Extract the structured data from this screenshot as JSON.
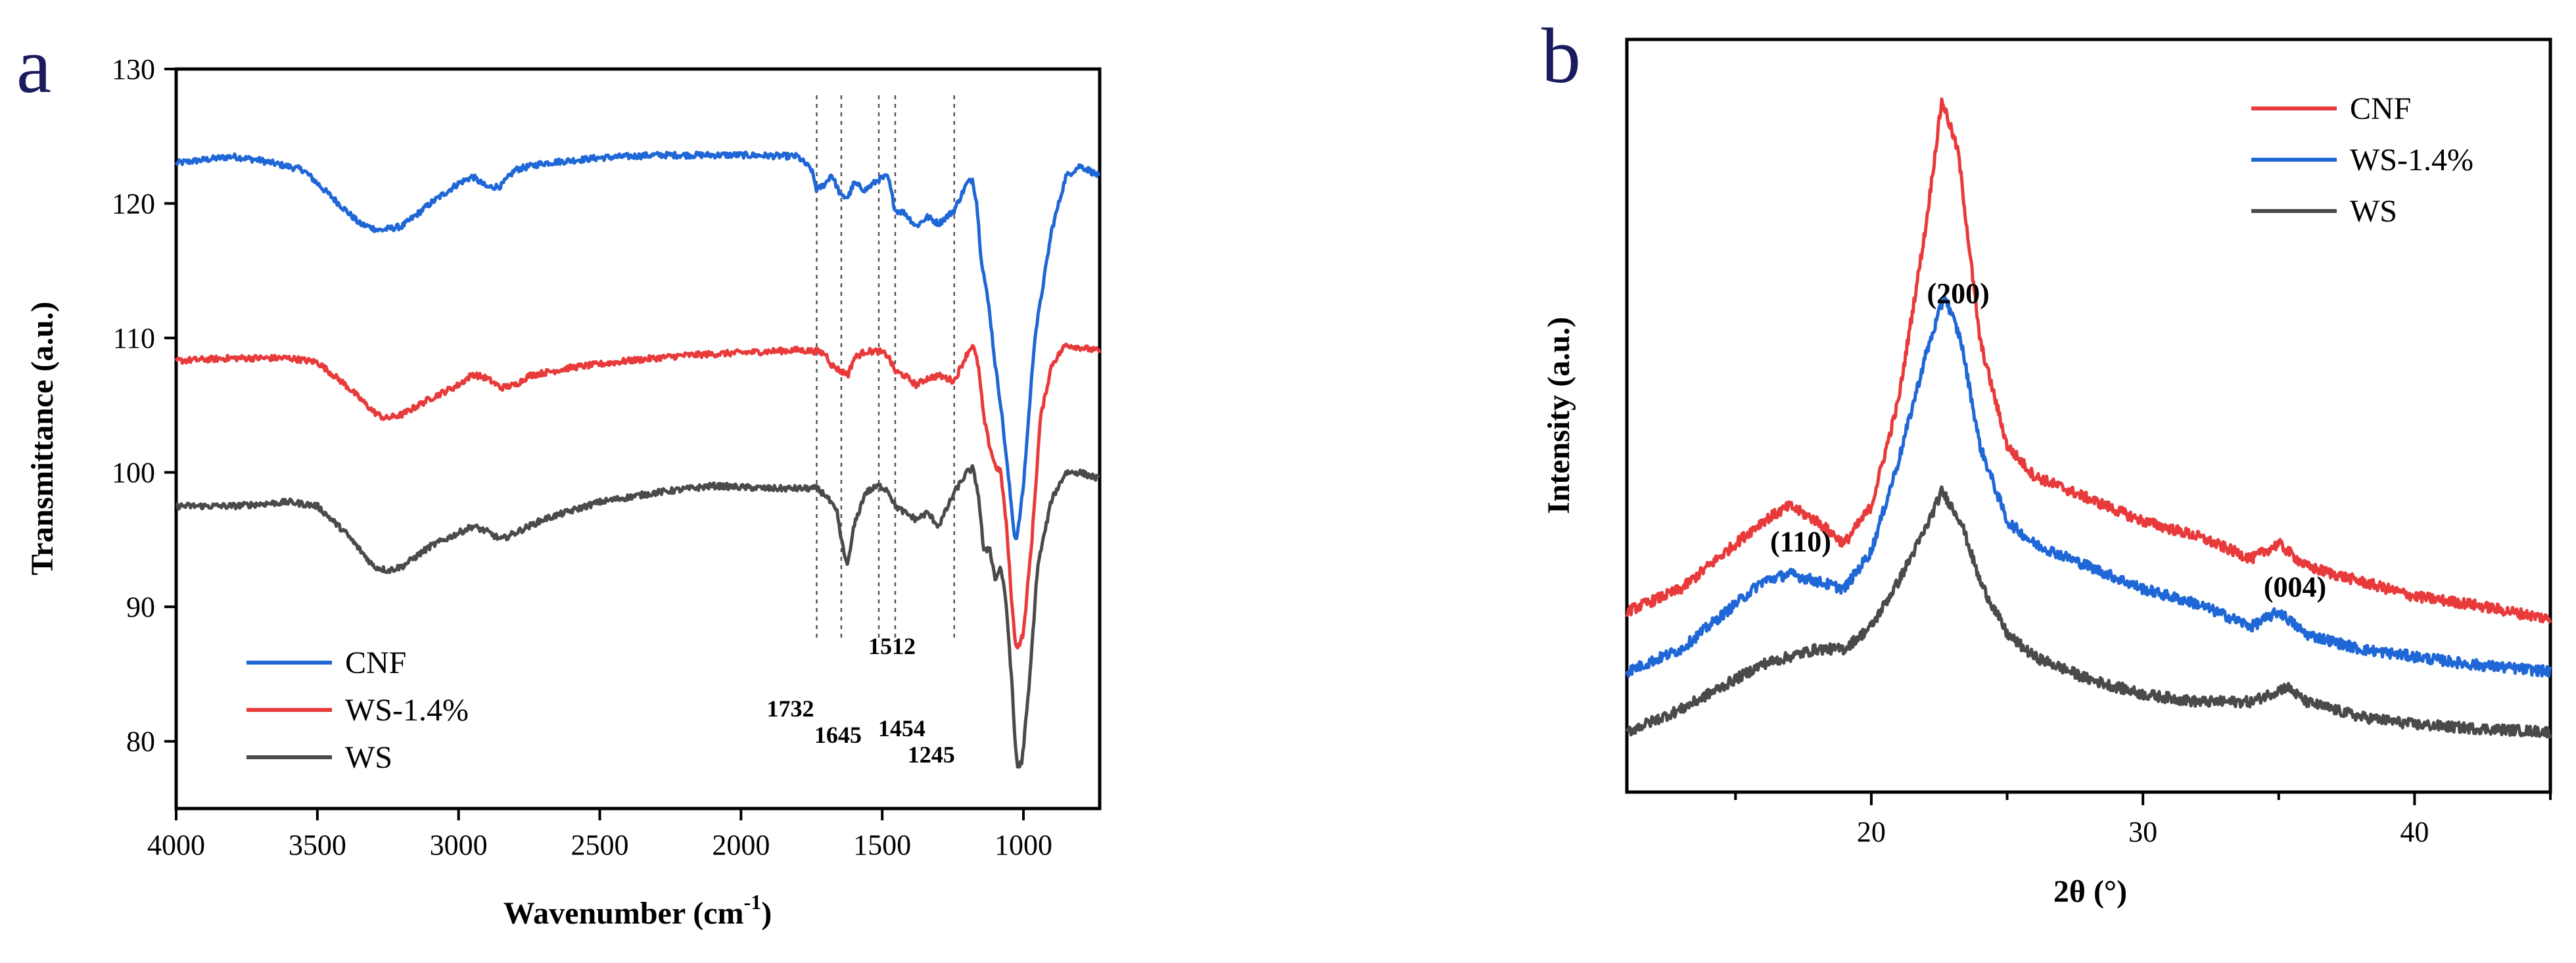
{
  "chart_data": [
    {
      "type": "line",
      "panel_label": "a",
      "title": "",
      "xlabel_main": "Wavenumber (cm",
      "xlabel_sup": "-1",
      "xlabel_end": ")",
      "ylabel": "Transmittance (a.u.)",
      "xlim": [
        4000,
        730
      ],
      "ylim": [
        75,
        130
      ],
      "x_ticks": [
        4000,
        3500,
        3000,
        2500,
        2000,
        1500,
        1000
      ],
      "y_ticks": [
        80,
        90,
        100,
        110,
        120,
        130
      ],
      "legend_position": "bottom-left",
      "series": [
        {
          "name": "CNF",
          "color": "#1f66d6",
          "points": [
            [
              4000,
              123
            ],
            [
              3800,
              123.5
            ],
            [
              3700,
              123.2
            ],
            [
              3550,
              122.5
            ],
            [
              3450,
              120.5
            ],
            [
              3350,
              118.5
            ],
            [
              3280,
              118
            ],
            [
              3200,
              118.3
            ],
            [
              3100,
              120
            ],
            [
              3000,
              121.5
            ],
            [
              2950,
              122
            ],
            [
              2900,
              121.2
            ],
            [
              2850,
              121.3
            ],
            [
              2800,
              122.5
            ],
            [
              2700,
              123
            ],
            [
              2500,
              123.4
            ],
            [
              2300,
              123.6
            ],
            [
              2000,
              123.6
            ],
            [
              1800,
              123.5
            ],
            [
              1750,
              122.5
            ],
            [
              1732,
              121
            ],
            [
              1700,
              121.5
            ],
            [
              1680,
              122.2
            ],
            [
              1645,
              120.5
            ],
            [
              1620,
              120.5
            ],
            [
              1600,
              121.5
            ],
            [
              1560,
              121
            ],
            [
              1512,
              121.8
            ],
            [
              1480,
              122
            ],
            [
              1454,
              119.5
            ],
            [
              1420,
              119.3
            ],
            [
              1380,
              118.3
            ],
            [
              1340,
              119
            ],
            [
              1300,
              118.5
            ],
            [
              1245,
              119.5
            ],
            [
              1200,
              121.5
            ],
            [
              1180,
              121.8
            ],
            [
              1165,
              120
            ],
            [
              1150,
              116
            ],
            [
              1120,
              112
            ],
            [
              1100,
              108
            ],
            [
              1080,
              105
            ],
            [
              1060,
              101
            ],
            [
              1040,
              97
            ],
            [
              1030,
              95
            ],
            [
              1020,
              95.5
            ],
            [
              1000,
              99
            ],
            [
              960,
              110
            ],
            [
              900,
              118
            ],
            [
              850,
              122
            ],
            [
              800,
              122.8
            ],
            [
              770,
              122.5
            ],
            [
              730,
              122
            ]
          ]
        },
        {
          "name": "WS-1.4%",
          "color": "#e83a3a",
          "points": [
            [
              4000,
              108.3
            ],
            [
              3800,
              108.5
            ],
            [
              3600,
              108.5
            ],
            [
              3500,
              108.2
            ],
            [
              3400,
              106.5
            ],
            [
              3300,
              104.5
            ],
            [
              3260,
              104
            ],
            [
              3200,
              104.3
            ],
            [
              3100,
              105.5
            ],
            [
              3000,
              106.5
            ],
            [
              2950,
              107.3
            ],
            [
              2900,
              107
            ],
            [
              2850,
              106.3
            ],
            [
              2800,
              106.5
            ],
            [
              2750,
              107.2
            ],
            [
              2600,
              107.8
            ],
            [
              2400,
              108.3
            ],
            [
              2200,
              108.7
            ],
            [
              2000,
              108.9
            ],
            [
              1800,
              109.1
            ],
            [
              1732,
              109
            ],
            [
              1700,
              108.8
            ],
            [
              1680,
              108
            ],
            [
              1645,
              107.5
            ],
            [
              1620,
              107.3
            ],
            [
              1600,
              108.5
            ],
            [
              1560,
              109
            ],
            [
              1512,
              109
            ],
            [
              1480,
              108.7
            ],
            [
              1454,
              107.5
            ],
            [
              1420,
              107.2
            ],
            [
              1380,
              106.5
            ],
            [
              1340,
              107
            ],
            [
              1300,
              107.2
            ],
            [
              1245,
              106.8
            ],
            [
              1200,
              108.8
            ],
            [
              1180,
              109.5
            ],
            [
              1160,
              108
            ],
            [
              1140,
              104
            ],
            [
              1120,
              102
            ],
            [
              1100,
              100.5
            ],
            [
              1080,
              100
            ],
            [
              1060,
              96
            ],
            [
              1040,
              90
            ],
            [
              1030,
              87.5
            ],
            [
              1020,
              87
            ],
            [
              1000,
              88
            ],
            [
              970,
              95
            ],
            [
              940,
              104
            ],
            [
              900,
              108
            ],
            [
              850,
              109.5
            ],
            [
              800,
              109.3
            ],
            [
              730,
              109
            ]
          ]
        },
        {
          "name": "WS",
          "color": "#4a4a4a",
          "points": [
            [
              4000,
              97.5
            ],
            [
              3800,
              97.5
            ],
            [
              3600,
              97.8
            ],
            [
              3500,
              97.5
            ],
            [
              3400,
              95.5
            ],
            [
              3300,
              93
            ],
            [
              3250,
              92.7
            ],
            [
              3200,
              93
            ],
            [
              3100,
              94.5
            ],
            [
              3000,
              95.5
            ],
            [
              2950,
              96
            ],
            [
              2900,
              95.6
            ],
            [
              2850,
              95
            ],
            [
              2800,
              95.5
            ],
            [
              2700,
              96.5
            ],
            [
              2500,
              97.8
            ],
            [
              2300,
              98.5
            ],
            [
              2100,
              99
            ],
            [
              1900,
              98.8
            ],
            [
              1732,
              98.8
            ],
            [
              1700,
              98.3
            ],
            [
              1660,
              97
            ],
            [
              1645,
              95
            ],
            [
              1630,
              93.5
            ],
            [
              1620,
              93.3
            ],
            [
              1600,
              96
            ],
            [
              1560,
              98.5
            ],
            [
              1512,
              99
            ],
            [
              1480,
              98.7
            ],
            [
              1454,
              97.5
            ],
            [
              1420,
              97
            ],
            [
              1380,
              96.5
            ],
            [
              1340,
              97
            ],
            [
              1300,
              96
            ],
            [
              1245,
              98.5
            ],
            [
              1200,
              100
            ],
            [
              1180,
              100.3
            ],
            [
              1160,
              98.5
            ],
            [
              1140,
              94
            ],
            [
              1120,
              94.5
            ],
            [
              1100,
              92
            ],
            [
              1080,
              93
            ],
            [
              1060,
              90
            ],
            [
              1040,
              84
            ],
            [
              1030,
              80
            ],
            [
              1020,
              78
            ],
            [
              1005,
              78.5
            ],
            [
              980,
              84
            ],
            [
              950,
              93
            ],
            [
              900,
              98
            ],
            [
              850,
              100
            ],
            [
              800,
              100
            ],
            [
              730,
              99.5
            ]
          ]
        }
      ],
      "annotations": [
        {
          "label": "1732",
          "x": 1732
        },
        {
          "label": "1645",
          "x": 1645
        },
        {
          "label": "1512",
          "x": 1512
        },
        {
          "label": "1454",
          "x": 1454
        },
        {
          "label": "1245",
          "x": 1245
        }
      ]
    },
    {
      "type": "line",
      "panel_label": "b",
      "title": "",
      "xlabel": "2θ (°)",
      "ylabel": "Intensity (a.u.)",
      "xlim": [
        11,
        45
      ],
      "ylim": [
        0,
        100
      ],
      "x_ticks": [
        20,
        30,
        40
      ],
      "legend_position": "top-right",
      "series": [
        {
          "name": "CNF",
          "color": "#e83a3a",
          "points": [
            [
              11,
              24
            ],
            [
              13,
              27
            ],
            [
              15,
              33
            ],
            [
              16,
              36
            ],
            [
              17,
              38
            ],
            [
              18,
              36
            ],
            [
              19,
              33
            ],
            [
              20,
              38
            ],
            [
              21,
              52
            ],
            [
              22,
              75
            ],
            [
              22.6,
              92
            ],
            [
              23.2,
              85
            ],
            [
              24,
              60
            ],
            [
              25,
              46
            ],
            [
              26,
              42
            ],
            [
              28,
              39
            ],
            [
              30,
              36
            ],
            [
              32,
              34
            ],
            [
              34,
              31
            ],
            [
              35,
              33
            ],
            [
              36,
              30
            ],
            [
              38,
              28
            ],
            [
              40,
              26
            ],
            [
              42,
              25
            ],
            [
              45,
              23
            ]
          ]
        },
        {
          "name": "WS-1.4%",
          "color": "#1f66d6",
          "points": [
            [
              11,
              16
            ],
            [
              13,
              19
            ],
            [
              15,
              25
            ],
            [
              16,
              28
            ],
            [
              17,
              29
            ],
            [
              18,
              28
            ],
            [
              19,
              27
            ],
            [
              20,
              32
            ],
            [
              21,
              44
            ],
            [
              22,
              58
            ],
            [
              22.7,
              66
            ],
            [
              23.3,
              60
            ],
            [
              24,
              46
            ],
            [
              25,
              36
            ],
            [
              26,
              33
            ],
            [
              28,
              30
            ],
            [
              30,
              27
            ],
            [
              32,
              25
            ],
            [
              34,
              22
            ],
            [
              35,
              24
            ],
            [
              36,
              21
            ],
            [
              38,
              19
            ],
            [
              40,
              18
            ],
            [
              42,
              17
            ],
            [
              45,
              16
            ]
          ]
        },
        {
          "name": "WS",
          "color": "#4a4a4a",
          "points": [
            [
              11,
              8
            ],
            [
              13,
              11
            ],
            [
              15,
              15
            ],
            [
              16,
              17
            ],
            [
              17,
              18
            ],
            [
              18,
              19
            ],
            [
              19,
              19
            ],
            [
              20,
              22
            ],
            [
              21,
              28
            ],
            [
              22,
              35
            ],
            [
              22.6,
              40
            ],
            [
              23.3,
              36
            ],
            [
              24,
              28
            ],
            [
              25,
              21
            ],
            [
              26,
              18
            ],
            [
              28,
              15
            ],
            [
              30,
              13
            ],
            [
              32,
              12
            ],
            [
              34,
              12
            ],
            [
              35.3,
              14
            ],
            [
              36,
              12
            ],
            [
              38,
              10
            ],
            [
              40,
              9
            ],
            [
              42,
              8.5
            ],
            [
              45,
              8
            ]
          ]
        }
      ],
      "peak_labels": [
        {
          "label": "(110)",
          "x": 17.4,
          "y": 32
        },
        {
          "label": "(200)",
          "x": 23.2,
          "y": 65
        },
        {
          "label": "(004)",
          "x": 35.6,
          "y": 26
        }
      ]
    }
  ]
}
